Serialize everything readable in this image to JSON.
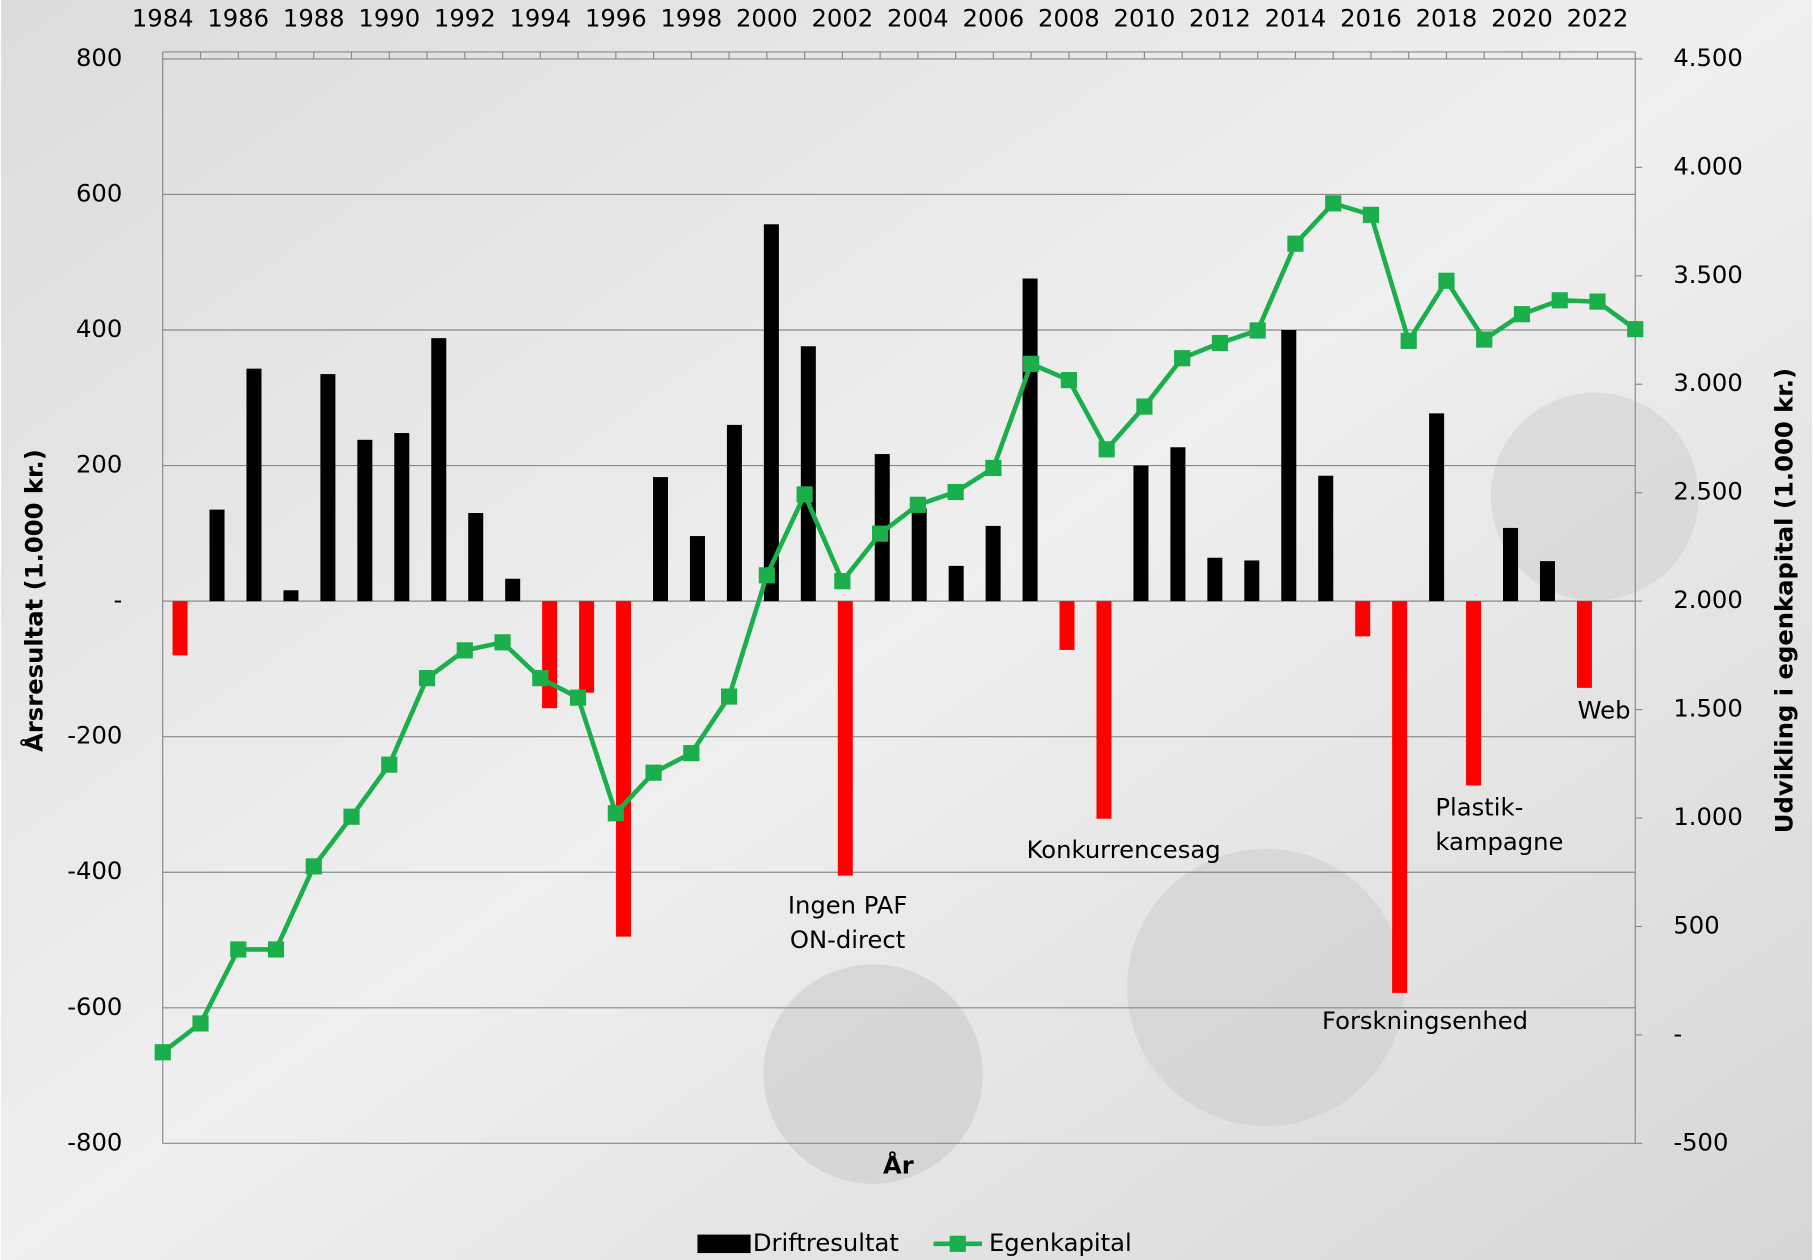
{
  "chart_data": {
    "type": "bar",
    "categories": [
      1984,
      null,
      1986,
      null,
      1988,
      null,
      1990,
      null,
      1992,
      null,
      1994,
      null,
      1996,
      null,
      1998,
      null,
      2000,
      null,
      2002,
      null,
      2004,
      null,
      2006,
      null,
      2008,
      null,
      2010,
      null,
      2012,
      null,
      2014,
      null,
      2016,
      null,
      2018,
      null,
      2020,
      null,
      2022,
      null
    ],
    "x_label": "År",
    "y_label": "Årsresultat (1.000 kr.)",
    "y2_label": "Udvikling i egenkapital (1.000 kr.)",
    "ylim": [
      -800,
      800
    ],
    "yticks": [
      -800,
      -600,
      -400,
      -200,
      {
        "value": 0,
        "label": "-"
      },
      200,
      400,
      600,
      800
    ],
    "y2lim": [
      -500,
      4500
    ],
    "y2ticks": [
      -500,
      {
        "value": 0,
        "label": "-"
      },
      500,
      {
        "value": 1000,
        "label": "1.000"
      },
      {
        "value": 1500,
        "label": "1.500"
      },
      {
        "value": 2000,
        "label": "2.000"
      },
      {
        "value": 2500,
        "label": "2.500"
      },
      {
        "value": 3000,
        "label": "3.000"
      },
      {
        "value": 3500,
        "label": "3.500"
      },
      {
        "value": 4000,
        "label": "4.000"
      },
      {
        "value": 4500,
        "label": "4.500"
      }
    ],
    "grid": true,
    "legend": "bottom",
    "series": [
      {
        "name": "Driftresultat",
        "type": "bar",
        "color": "#000000",
        "negative_color": "#ff0000",
        "values": [
          -80,
          135,
          343,
          16,
          335,
          238,
          248,
          388,
          130,
          33,
          -158,
          -135,
          -495,
          183,
          96,
          260,
          556,
          376,
          -405,
          217,
          137,
          52,
          111,
          476,
          -72,
          -321,
          200,
          227,
          64,
          60,
          400,
          185,
          -52,
          -578,
          277,
          -272,
          108,
          59,
          -128,
          null
        ]
      },
      {
        "name": "Egenkapital",
        "type": "line",
        "color": "#1aaf4b",
        "axis": "y2",
        "values": [
          -80,
          53,
          394,
          394,
          777,
          1006,
          1246,
          1645,
          1773,
          1810,
          1645,
          1555,
          1022,
          1209,
          1299,
          1560,
          2119,
          2492,
          2092,
          2311,
          2444,
          2503,
          2614,
          3094,
          3019,
          2700,
          2897,
          3120,
          3190,
          3248,
          3648,
          3834,
          3781,
          3200,
          3477,
          3206,
          3323,
          3387,
          3381,
          3254
        ]
      }
    ],
    "annotations": [
      [
        "Ingen PAF",
        "ON-direct"
      ],
      [
        "Konkurrencesag"
      ],
      [
        "Forskningsenhed"
      ],
      [
        "Plastik-",
        "kampagne"
      ],
      [
        "Web"
      ]
    ]
  }
}
